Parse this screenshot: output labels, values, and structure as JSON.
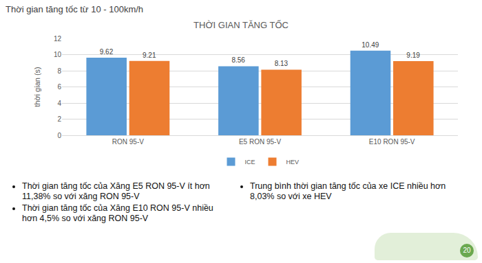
{
  "heading": "Thời gian tăng tốc từ 10 - 100km/h",
  "chart_data": {
    "type": "bar",
    "title": "THỜI GIAN TĂNG TỐC",
    "categories": [
      "RON 95-V",
      "E5 RON 95-V",
      "E10 RON 95-V"
    ],
    "series": [
      {
        "name": "ICE",
        "color": "#5b9bd5",
        "values": [
          9.62,
          8.56,
          10.49
        ]
      },
      {
        "name": "HEV",
        "color": "#ed7d31",
        "values": [
          9.21,
          8.13,
          9.19
        ]
      }
    ],
    "y_label": "thời gian (s)",
    "ylim": [
      0,
      12
    ],
    "yticks": [
      0,
      2,
      4,
      6,
      8,
      10,
      12
    ],
    "grid": true,
    "legend": "bottom",
    "data_labels": true
  },
  "notes_left": [
    "Thời gian tăng tốc của Xăng E5 RON 95-V ít hơn 11,38% so với xăng RON 95-V",
    "Thời gian tăng tốc của Xăng E10 RON 95-V nhiều hơn 4,5% so với xăng RON 95-V"
  ],
  "notes_right": [
    "Trung bình thời gian tăng tốc của xe ICE nhiều hơn 8,03% so với xe HEV"
  ],
  "page_number": 20
}
